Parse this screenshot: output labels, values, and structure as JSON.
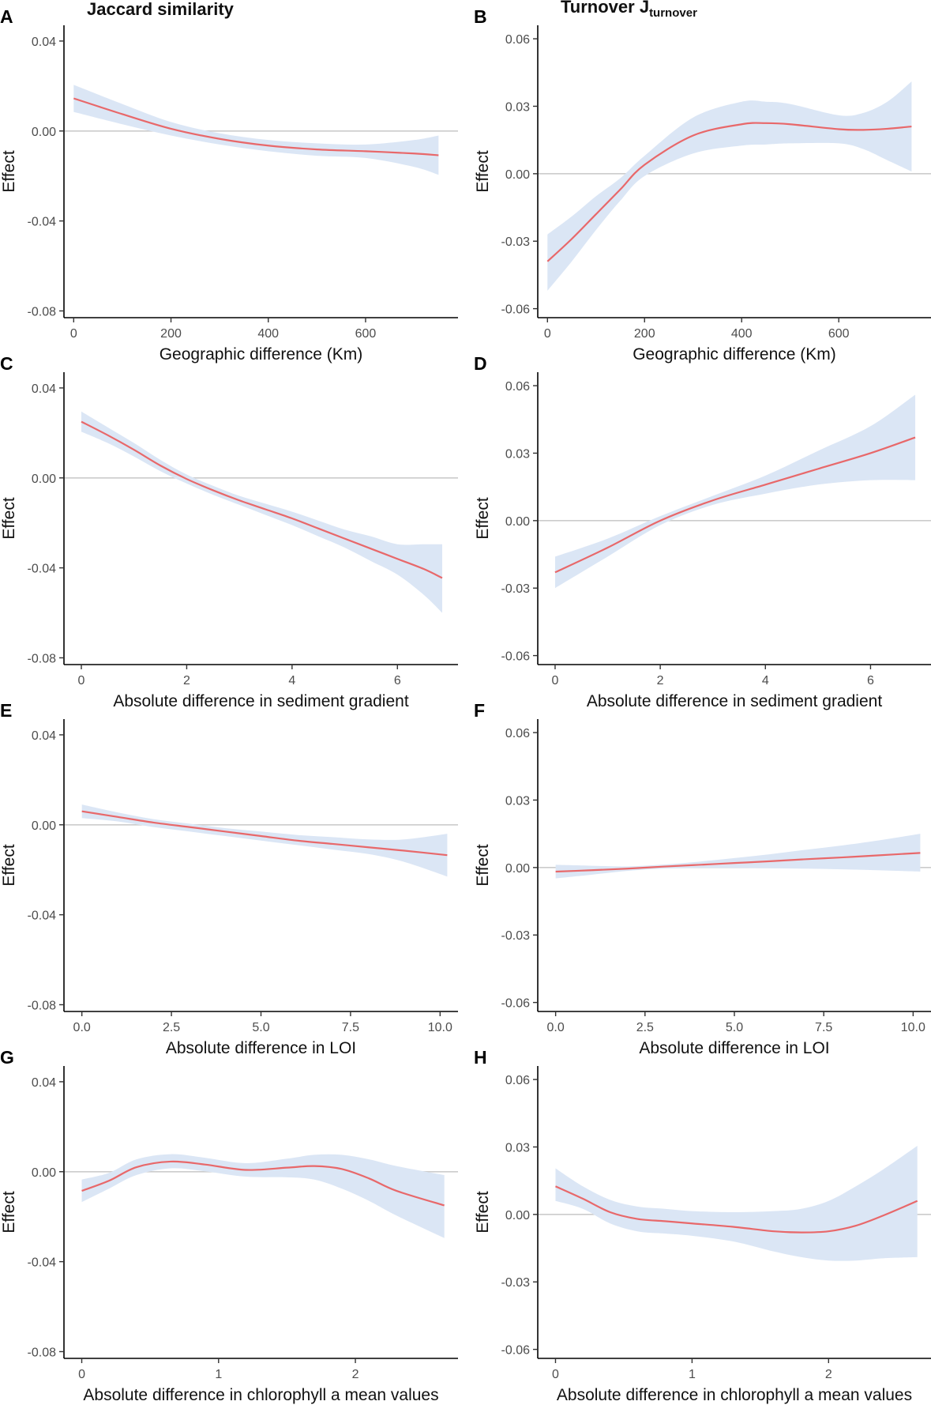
{
  "column_titles": [
    {
      "text": "Jaccard similarity"
    },
    {
      "main": "Turnover J",
      "sub": "turnover"
    }
  ],
  "colors": {
    "line": "#e8686a",
    "band": "#dbe6f5",
    "zero_line": "#cccccc",
    "axis": "#000000"
  },
  "chart_data": [
    {
      "panel": "A",
      "type": "line",
      "title": "",
      "xlabel": "Geographic difference (Km)",
      "ylabel": "Effect",
      "xlim": [
        -20,
        790
      ],
      "ylim": [
        -0.083,
        0.047
      ],
      "xticks": [
        {
          "v": 0,
          "t": "0"
        },
        {
          "v": 200,
          "t": "200"
        },
        {
          "v": 400,
          "t": "400"
        },
        {
          "v": 600,
          "t": "600"
        }
      ],
      "yticks": [
        {
          "v": 0.04,
          "t": "0.04"
        },
        {
          "v": 0,
          "t": "0.00"
        },
        {
          "v": -0.04,
          "t": "-0.04"
        },
        {
          "v": -0.08,
          "t": "-0.08"
        }
      ],
      "x": [
        0,
        100,
        200,
        300,
        400,
        500,
        600,
        700,
        750
      ],
      "fit": [
        0.0145,
        0.0075,
        0.001,
        -0.0035,
        -0.0065,
        -0.0082,
        -0.009,
        -0.01,
        -0.0108
      ],
      "lower": [
        0.0085,
        0.003,
        -0.002,
        -0.006,
        -0.009,
        -0.011,
        -0.012,
        -0.016,
        -0.0195
      ],
      "upper": [
        0.0205,
        0.012,
        0.004,
        -0.001,
        -0.004,
        -0.0055,
        -0.006,
        -0.004,
        -0.002
      ]
    },
    {
      "panel": "B",
      "type": "line",
      "title": "",
      "xlabel": "Geographic difference (Km)",
      "ylabel": "Effect",
      "xlim": [
        -20,
        790
      ],
      "ylim": [
        -0.064,
        0.066
      ],
      "xticks": [
        {
          "v": 0,
          "t": "0"
        },
        {
          "v": 200,
          "t": "200"
        },
        {
          "v": 400,
          "t": "400"
        },
        {
          "v": 600,
          "t": "600"
        }
      ],
      "yticks": [
        {
          "v": 0.06,
          "t": "0.06"
        },
        {
          "v": 0.03,
          "t": "0.03"
        },
        {
          "v": 0,
          "t": "0.00"
        },
        {
          "v": -0.03,
          "t": "-0.03"
        },
        {
          "v": -0.06,
          "t": "-0.06"
        }
      ],
      "x": [
        0,
        50,
        100,
        150,
        200,
        300,
        400,
        450,
        500,
        600,
        650,
        700,
        750
      ],
      "fit": [
        -0.039,
        -0.029,
        -0.018,
        -0.007,
        0.004,
        0.017,
        0.022,
        0.0225,
        0.022,
        0.0198,
        0.0195,
        0.02,
        0.021
      ],
      "lower": [
        -0.052,
        -0.039,
        -0.025,
        -0.012,
        -0.001,
        0.009,
        0.0125,
        0.013,
        0.0135,
        0.0135,
        0.011,
        0.006,
        0.001
      ],
      "upper": [
        -0.027,
        -0.019,
        -0.01,
        -0.002,
        0.008,
        0.025,
        0.032,
        0.032,
        0.031,
        0.026,
        0.027,
        0.032,
        0.041
      ]
    },
    {
      "panel": "C",
      "type": "line",
      "title": "",
      "xlabel": "Absolute difference in sediment gradient",
      "ylabel": "Effect",
      "xlim": [
        -0.33,
        7.15
      ],
      "ylim": [
        -0.083,
        0.047
      ],
      "xticks": [
        {
          "v": 0,
          "t": "0"
        },
        {
          "v": 2,
          "t": "2"
        },
        {
          "v": 4,
          "t": "4"
        },
        {
          "v": 6,
          "t": "6"
        }
      ],
      "yticks": [
        {
          "v": 0.04,
          "t": "0.04"
        },
        {
          "v": 0,
          "t": "0.00"
        },
        {
          "v": -0.04,
          "t": "-0.04"
        },
        {
          "v": -0.08,
          "t": "-0.08"
        }
      ],
      "x": [
        0,
        0.5,
        1,
        1.5,
        2,
        2.5,
        3,
        3.5,
        4,
        4.5,
        5,
        5.5,
        6,
        6.5,
        6.85
      ],
      "fit": [
        0.025,
        0.019,
        0.0125,
        0.0055,
        -0.0005,
        -0.0055,
        -0.01,
        -0.014,
        -0.018,
        -0.0225,
        -0.027,
        -0.0315,
        -0.036,
        -0.0405,
        -0.0445
      ],
      "lower": [
        0.0205,
        0.0155,
        0.0095,
        0.003,
        -0.0025,
        -0.0075,
        -0.012,
        -0.0165,
        -0.021,
        -0.026,
        -0.031,
        -0.037,
        -0.043,
        -0.052,
        -0.06
      ],
      "upper": [
        0.0295,
        0.0225,
        0.0155,
        0.008,
        0.0015,
        -0.0035,
        -0.008,
        -0.0115,
        -0.015,
        -0.019,
        -0.023,
        -0.026,
        -0.0295,
        -0.0295,
        -0.0295
      ]
    },
    {
      "panel": "D",
      "type": "line",
      "title": "",
      "xlabel": "Absolute difference in sediment gradient",
      "ylabel": "Effect",
      "xlim": [
        -0.33,
        7.15
      ],
      "ylim": [
        -0.064,
        0.066
      ],
      "xticks": [
        {
          "v": 0,
          "t": "0"
        },
        {
          "v": 2,
          "t": "2"
        },
        {
          "v": 4,
          "t": "4"
        },
        {
          "v": 6,
          "t": "6"
        }
      ],
      "yticks": [
        {
          "v": 0.06,
          "t": "0.06"
        },
        {
          "v": 0.03,
          "t": "0.03"
        },
        {
          "v": 0,
          "t": "0.00"
        },
        {
          "v": -0.03,
          "t": "-0.03"
        },
        {
          "v": -0.06,
          "t": "-0.06"
        }
      ],
      "x": [
        0,
        1,
        2,
        3,
        4,
        5,
        6,
        6.85
      ],
      "fit": [
        -0.023,
        -0.012,
        0.0,
        0.009,
        0.016,
        0.023,
        0.03,
        0.037
      ],
      "lower": [
        -0.03,
        -0.016,
        -0.002,
        0.007,
        0.012,
        0.016,
        0.018,
        0.018
      ],
      "upper": [
        -0.016,
        -0.008,
        0.002,
        0.011,
        0.02,
        0.031,
        0.042,
        0.056
      ]
    },
    {
      "panel": "E",
      "type": "line",
      "title": "",
      "xlabel": "Absolute difference in LOI",
      "ylabel": "Effect",
      "xlim": [
        -0.5,
        10.5
      ],
      "ylim": [
        -0.083,
        0.047
      ],
      "xticks": [
        {
          "v": 0,
          "t": "0.0"
        },
        {
          "v": 2.5,
          "t": "2.5"
        },
        {
          "v": 5,
          "t": "5.0"
        },
        {
          "v": 7.5,
          "t": "7.5"
        },
        {
          "v": 10,
          "t": "10.0"
        }
      ],
      "yticks": [
        {
          "v": 0.04,
          "t": "0.04"
        },
        {
          "v": 0,
          "t": "0.00"
        },
        {
          "v": -0.04,
          "t": "-0.04"
        },
        {
          "v": -0.08,
          "t": "-0.08"
        }
      ],
      "x": [
        0,
        1,
        2,
        3,
        4,
        5,
        6,
        7,
        8,
        9,
        10.2
      ],
      "fit": [
        0.006,
        0.0035,
        0.001,
        -0.001,
        -0.003,
        -0.005,
        -0.007,
        -0.0085,
        -0.01,
        -0.0115,
        -0.0135
      ],
      "lower": [
        0.003,
        0.0015,
        -0.001,
        -0.003,
        -0.005,
        -0.007,
        -0.009,
        -0.011,
        -0.013,
        -0.0165,
        -0.023
      ],
      "upper": [
        0.009,
        0.0055,
        0.0025,
        0.0005,
        -0.0015,
        -0.003,
        -0.0045,
        -0.0055,
        -0.0065,
        -0.0065,
        -0.004
      ]
    },
    {
      "panel": "F",
      "type": "line",
      "title": "",
      "xlabel": "Absolute difference in LOI",
      "ylabel": "Effect",
      "xlim": [
        -0.5,
        10.5
      ],
      "ylim": [
        -0.064,
        0.066
      ],
      "xticks": [
        {
          "v": 0,
          "t": "0.0"
        },
        {
          "v": 2.5,
          "t": "2.5"
        },
        {
          "v": 5,
          "t": "5.0"
        },
        {
          "v": 7.5,
          "t": "7.5"
        },
        {
          "v": 10,
          "t": "10.0"
        }
      ],
      "yticks": [
        {
          "v": 0.06,
          "t": "0.06"
        },
        {
          "v": 0.03,
          "t": "0.03"
        },
        {
          "v": 0,
          "t": "0.00"
        },
        {
          "v": -0.03,
          "t": "-0.03"
        },
        {
          "v": -0.06,
          "t": "-0.06"
        }
      ],
      "x": [
        0,
        1,
        2,
        3,
        4,
        5,
        6,
        7,
        8,
        9,
        10.2
      ],
      "fit": [
        -0.0018,
        -0.0012,
        -0.0005,
        0.0004,
        0.0012,
        0.002,
        0.0028,
        0.0037,
        0.0045,
        0.0054,
        0.0065
      ],
      "lower": [
        -0.0048,
        -0.0032,
        -0.0015,
        -0.0005,
        -0.0002,
        -0.0002,
        -0.0003,
        -0.0005,
        -0.0008,
        -0.0012,
        -0.0018
      ],
      "upper": [
        0.0012,
        0.0008,
        0.0005,
        0.0013,
        0.0026,
        0.0042,
        0.0059,
        0.0079,
        0.0098,
        0.012,
        0.015
      ]
    },
    {
      "panel": "G",
      "type": "line",
      "title": "",
      "xlabel": "Absolute difference in chlorophyll a mean values",
      "ylabel": "Effect",
      "xlim": [
        -0.13,
        2.75
      ],
      "ylim": [
        -0.083,
        0.047
      ],
      "xticks": [
        {
          "v": 0,
          "t": "0"
        },
        {
          "v": 1,
          "t": "1"
        },
        {
          "v": 2,
          "t": "2"
        }
      ],
      "yticks": [
        {
          "v": 0.04,
          "t": "0.04"
        },
        {
          "v": 0,
          "t": "0.00"
        },
        {
          "v": -0.04,
          "t": "-0.04"
        },
        {
          "v": -0.08,
          "t": "-0.08"
        }
      ],
      "x": [
        0,
        0.2,
        0.4,
        0.65,
        0.9,
        1.2,
        1.5,
        1.7,
        1.9,
        2.1,
        2.3,
        2.65
      ],
      "fit": [
        -0.0085,
        -0.004,
        0.002,
        0.0045,
        0.0032,
        0.0008,
        0.0018,
        0.0025,
        0.0012,
        -0.003,
        -0.0085,
        -0.015
      ],
      "lower": [
        -0.0135,
        -0.0075,
        -0.0015,
        0.0015,
        0.0002,
        -0.0022,
        -0.0025,
        -0.0035,
        -0.0075,
        -0.013,
        -0.0195,
        -0.0295
      ],
      "upper": [
        -0.0035,
        -0.0005,
        0.0055,
        0.0078,
        0.0062,
        0.0038,
        0.0058,
        0.0075,
        0.0075,
        0.0055,
        0.0025,
        -0.0015
      ]
    },
    {
      "panel": "H",
      "type": "line",
      "title": "",
      "xlabel": "Absolute difference in chlorophyll a mean values",
      "ylabel": "Effect",
      "xlim": [
        -0.13,
        2.75
      ],
      "ylim": [
        -0.064,
        0.066
      ],
      "xticks": [
        {
          "v": 0,
          "t": "0"
        },
        {
          "v": 1,
          "t": "1"
        },
        {
          "v": 2,
          "t": "2"
        }
      ],
      "yticks": [
        {
          "v": 0.06,
          "t": "0.06"
        },
        {
          "v": 0.03,
          "t": "0.03"
        },
        {
          "v": 0,
          "t": "0.00"
        },
        {
          "v": -0.03,
          "t": "-0.03"
        },
        {
          "v": -0.06,
          "t": "-0.06"
        }
      ],
      "x": [
        0,
        0.2,
        0.4,
        0.6,
        0.8,
        1.0,
        1.3,
        1.6,
        1.8,
        2.0,
        2.2,
        2.4,
        2.65
      ],
      "fit": [
        0.0125,
        0.007,
        0.001,
        -0.002,
        -0.003,
        -0.004,
        -0.0055,
        -0.0075,
        -0.008,
        -0.0075,
        -0.005,
        -0.0005,
        0.006
      ],
      "lower": [
        0.006,
        0.0025,
        -0.004,
        -0.0075,
        -0.0085,
        -0.0095,
        -0.012,
        -0.0165,
        -0.019,
        -0.0205,
        -0.0205,
        -0.0195,
        -0.019
      ],
      "upper": [
        0.0205,
        0.0125,
        0.0065,
        0.0035,
        0.0025,
        0.0015,
        0.001,
        0.0015,
        0.0025,
        0.006,
        0.0125,
        0.02,
        0.0305
      ]
    }
  ]
}
